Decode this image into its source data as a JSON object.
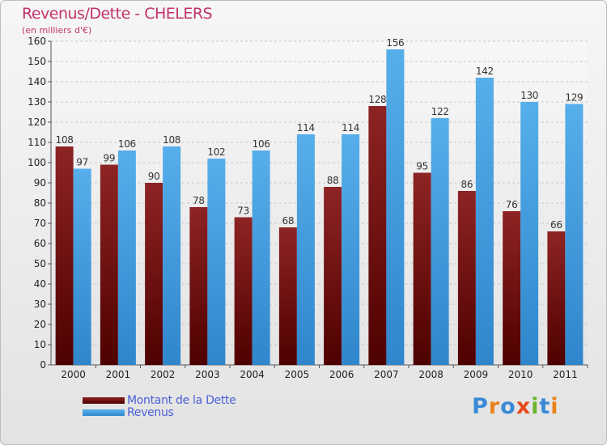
{
  "title": "Revenus/Dette - CHELERS",
  "subtitle": "(en milliers d'€)",
  "logo": {
    "text": "Proxiti"
  },
  "colors": {
    "dette": "#7a1010",
    "revenus": "#4aa3e6",
    "title": "#c2336b",
    "legend_text": "#4b5fd6"
  },
  "legend": [
    {
      "label": "Montant de la Dette",
      "color": "#6b0a0a"
    },
    {
      "label": "Revenus",
      "color": "#4aa3e6"
    }
  ],
  "chart_data": {
    "type": "bar",
    "title": "Revenus/Dette - CHELERS",
    "ylabel": "(en milliers d'€)",
    "xlabel": "",
    "ylim": [
      0,
      160
    ],
    "yticks": [
      0,
      10,
      20,
      30,
      40,
      50,
      60,
      70,
      80,
      90,
      100,
      110,
      120,
      130,
      140,
      150,
      160
    ],
    "grid": true,
    "legend_position": "bottom-left",
    "categories": [
      "2000",
      "2001",
      "2002",
      "2003",
      "2004",
      "2005",
      "2006",
      "2007",
      "2008",
      "2009",
      "2010",
      "2011"
    ],
    "series": [
      {
        "name": "Montant de la Dette",
        "values": [
          108,
          99,
          90,
          78,
          73,
          68,
          88,
          128,
          95,
          86,
          76,
          66
        ]
      },
      {
        "name": "Revenus",
        "values": [
          97,
          106,
          108,
          102,
          106,
          114,
          114,
          156,
          122,
          142,
          130,
          129
        ]
      }
    ]
  }
}
